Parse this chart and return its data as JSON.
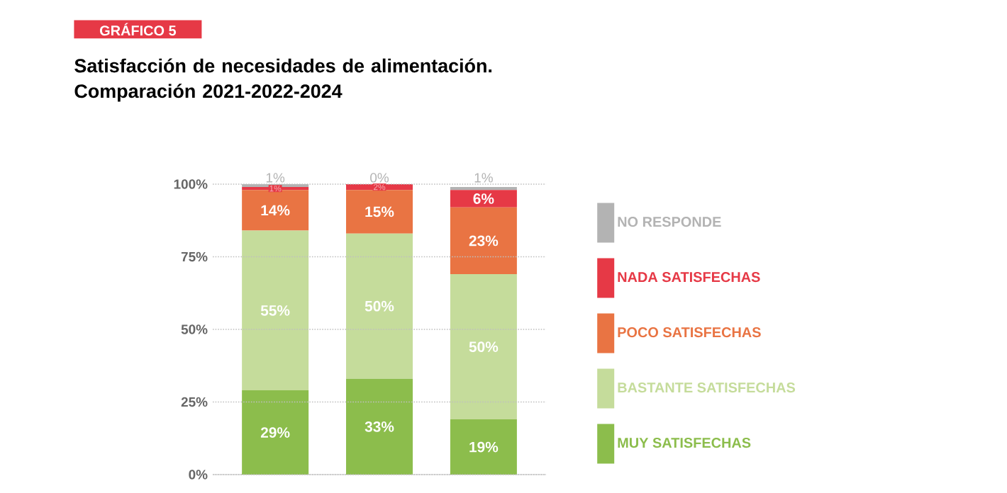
{
  "chart_data": {
    "type": "bar",
    "stacked": true,
    "title": "Satisfacción de necesidades de alimentación. Comparación 2021-2022-2024",
    "annotations": [
      "GRÁFICO 5"
    ],
    "categories": [
      null,
      null,
      null
    ],
    "series": [
      {
        "name": "MUY SATISFECHAS",
        "color": "#8cbd4c",
        "values": [
          29,
          33,
          19
        ],
        "value_labels": [
          "29%",
          "33%",
          "19%"
        ]
      },
      {
        "name": "BASTANTE SATISFECHAS",
        "color": "#c5dc9b",
        "values": [
          55,
          50,
          50
        ],
        "value_labels": [
          "55%",
          "50%",
          "50%"
        ]
      },
      {
        "name": "POCO SATISFECHAS",
        "color": "#e97443",
        "values": [
          14,
          15,
          23
        ],
        "value_labels": [
          "14%",
          "15%",
          "23%"
        ]
      },
      {
        "name": "NADA SATISFECHAS",
        "color": "#e63946",
        "values": [
          1,
          2,
          6
        ],
        "value_labels": [
          "1%",
          "2%",
          "6%"
        ]
      },
      {
        "name": "NO RESPONDE",
        "color": "#b3b3b3",
        "values": [
          1,
          0,
          1
        ],
        "value_labels": [
          "1%",
          "0%",
          "1%"
        ]
      }
    ],
    "ylim": [
      0,
      100
    ],
    "yticks": [
      {
        "value": 0,
        "label": "0%"
      },
      {
        "value": 25,
        "label": "25%"
      },
      {
        "value": 50,
        "label": "50%"
      },
      {
        "value": 75,
        "label": "75%"
      },
      {
        "value": 100,
        "label": "100%"
      }
    ],
    "grid": "y",
    "legend": "right"
  }
}
